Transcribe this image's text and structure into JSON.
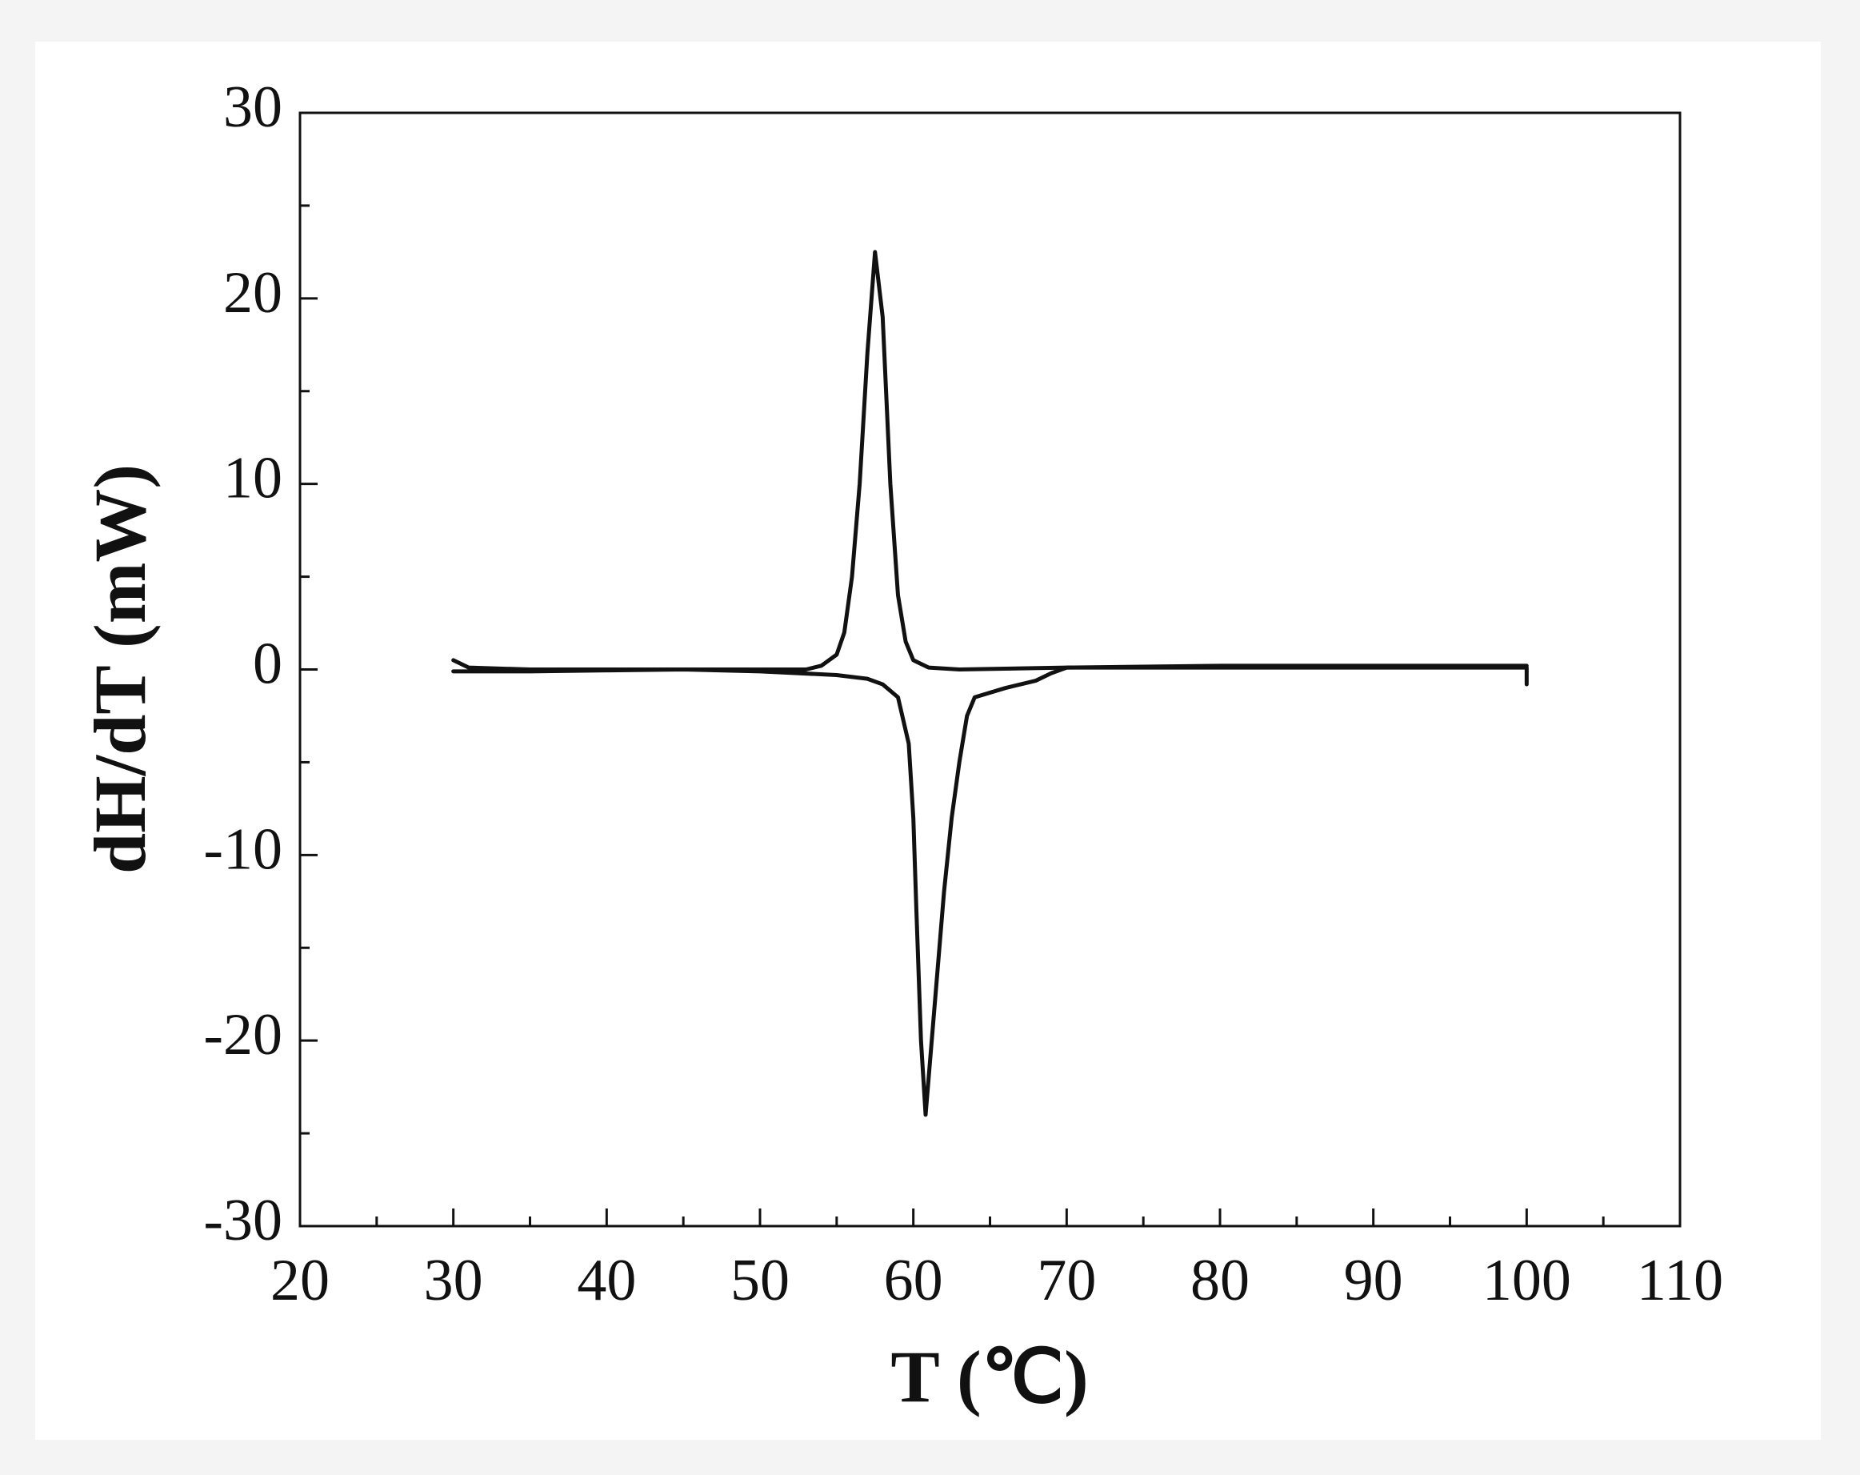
{
  "chart_data": {
    "type": "line",
    "xlabel": "T (℃)",
    "ylabel": "dH/dT (mW)",
    "xlim": [
      20,
      110
    ],
    "xticks": [
      20,
      30,
      40,
      50,
      60,
      70,
      80,
      90,
      100,
      110
    ],
    "ylim": [
      -30,
      30
    ],
    "yticks": [
      -30,
      -20,
      -10,
      0,
      10,
      20,
      30
    ],
    "grid": false,
    "series": [
      {
        "color": "#111111",
        "x": [
          30,
          31,
          35,
          45,
          50,
          53,
          54,
          55,
          55.5,
          56,
          56.5,
          57,
          57.5,
          58,
          58.5,
          59,
          59.5,
          60,
          61,
          63,
          70,
          80,
          90,
          100,
          100
        ],
        "values": [
          0.5,
          0.1,
          0,
          0,
          0,
          0,
          0.2,
          0.8,
          2,
          5,
          10,
          17,
          22.5,
          19,
          10,
          4,
          1.5,
          0.5,
          0.1,
          0,
          0.1,
          0.1,
          0.1,
          0.1,
          -0.8
        ]
      },
      {
        "color": "#111111",
        "x": [
          100,
          90,
          80,
          70,
          69,
          68,
          66,
          64,
          63.5,
          63,
          62.5,
          62,
          61.5,
          61,
          60.8,
          60.5,
          60.2,
          60,
          59.7,
          59,
          58,
          57,
          55,
          50,
          45,
          40,
          35,
          30
        ],
        "values": [
          0.2,
          0.2,
          0.2,
          0.1,
          -0.2,
          -0.6,
          -1,
          -1.5,
          -2.5,
          -5,
          -8,
          -12,
          -17,
          -22,
          -24,
          -20,
          -13,
          -8,
          -4,
          -1.5,
          -0.8,
          -0.5,
          -0.3,
          -0.1,
          0,
          -0.05,
          -0.1,
          -0.1
        ]
      }
    ]
  }
}
